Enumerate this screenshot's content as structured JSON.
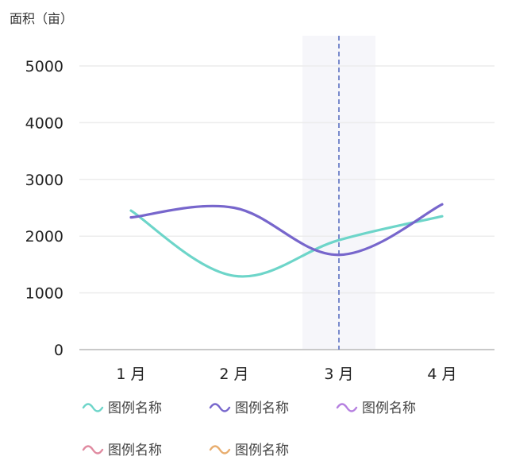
{
  "chart_data": {
    "type": "line",
    "ylabel": "面积（亩）",
    "xlabel": "",
    "categories": [
      "1 月",
      "2 月",
      "3 月",
      "4 月"
    ],
    "yticks": [
      "0",
      "1000",
      "2000",
      "3000",
      "4000",
      "5000"
    ],
    "ylim": [
      0,
      5000
    ],
    "grid": true,
    "smooth": true,
    "highlight_category": "3 月",
    "highlight_color": "#f6f6fa",
    "crosshair_color": "#5a6fc0",
    "series": [
      {
        "name": "图例名称",
        "color": "#6dd5c9",
        "values": [
          2450,
          1300,
          1930,
          2350
        ]
      },
      {
        "name": "图例名称",
        "color": "#7766cc",
        "values": [
          2330,
          2500,
          1670,
          2560
        ]
      }
    ],
    "legend": [
      {
        "label": "图例名称",
        "color": "#6dd5c9"
      },
      {
        "label": "图例名称",
        "color": "#7766cc"
      },
      {
        "label": "图例名称",
        "color": "#b57fe0"
      },
      {
        "label": "图例名称",
        "color": "#e08aa0"
      },
      {
        "label": "图例名称",
        "color": "#e8ad6e"
      }
    ],
    "legend_position": "bottom"
  }
}
